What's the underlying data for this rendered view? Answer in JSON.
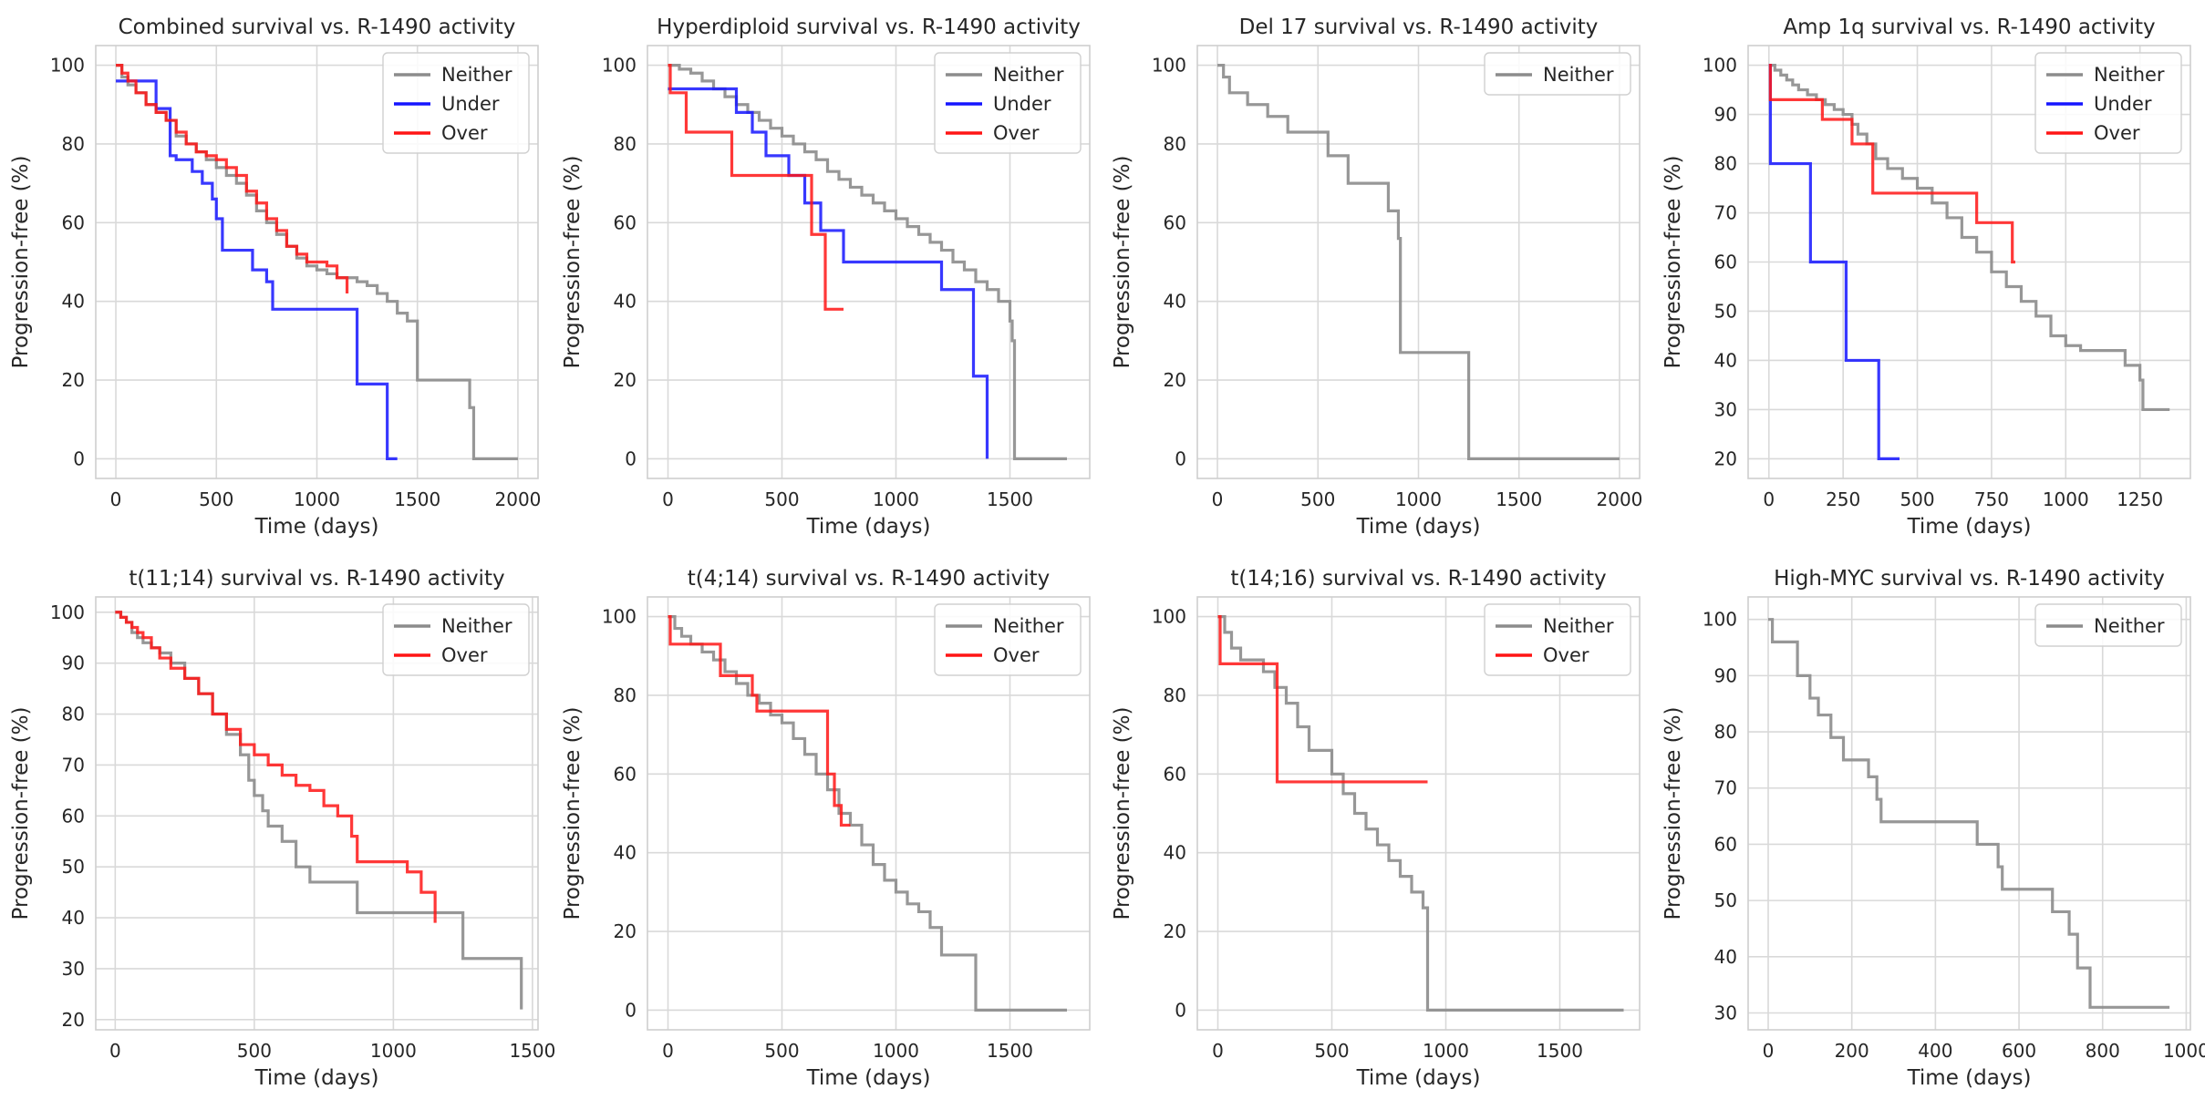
{
  "figure": {
    "ylabel": "Progression-free (%)",
    "xlabel": "Time (days)"
  },
  "colors": {
    "Neither": "#8c8c8c",
    "Under": "#1515ff",
    "Over": "#ff1515"
  },
  "chart_data": [
    {
      "type": "line",
      "step": true,
      "title": "Combined survival vs. R-1490 activity",
      "xlabel": "Time (days)",
      "ylabel": "Progression-free (%)",
      "xlim": [
        -100,
        2100
      ],
      "ylim": [
        -5,
        105
      ],
      "xticks": [
        0,
        500,
        1000,
        1500,
        2000
      ],
      "yticks": [
        0,
        20,
        40,
        60,
        80,
        100
      ],
      "grid": true,
      "legend": "top-right",
      "series": [
        {
          "name": "Neither",
          "x": [
            0,
            30,
            60,
            100,
            150,
            200,
            250,
            300,
            350,
            400,
            450,
            500,
            550,
            600,
            650,
            700,
            750,
            800,
            850,
            900,
            950,
            1000,
            1050,
            1100,
            1150,
            1200,
            1250,
            1300,
            1350,
            1400,
            1450,
            1500,
            1550,
            1600,
            1700,
            1760,
            1780,
            2000
          ],
          "y": [
            100,
            97,
            95,
            93,
            90,
            88,
            86,
            82,
            80,
            78,
            76,
            74,
            72,
            70,
            67,
            63,
            60,
            57,
            54,
            51,
            49,
            48,
            47,
            46,
            46,
            45,
            44,
            42,
            40,
            37,
            35,
            20,
            20,
            20,
            20,
            13,
            0,
            0
          ]
        },
        {
          "name": "Under",
          "x": [
            0,
            130,
            200,
            270,
            300,
            380,
            430,
            480,
            500,
            530,
            680,
            750,
            780,
            1200,
            1350,
            1400
          ],
          "y": [
            96,
            96,
            89,
            77,
            76,
            73,
            70,
            66,
            61,
            53,
            48,
            45,
            38,
            19,
            0,
            0
          ]
        },
        {
          "name": "Over",
          "x": [
            0,
            30,
            60,
            100,
            150,
            200,
            250,
            300,
            350,
            400,
            450,
            500,
            550,
            600,
            650,
            700,
            750,
            800,
            850,
            900,
            950,
            1000,
            1050,
            1100,
            1150
          ],
          "y": [
            100,
            98,
            96,
            93,
            90,
            88,
            86,
            83,
            80,
            78,
            77,
            76,
            74,
            72,
            68,
            65,
            61,
            58,
            54,
            52,
            50,
            50,
            49,
            46,
            42
          ]
        }
      ]
    },
    {
      "type": "line",
      "step": true,
      "title": "Hyperdiploid survival vs. R-1490 activity",
      "xlabel": "Time (days)",
      "ylabel": "Progression-free (%)",
      "xlim": [
        -90,
        1850
      ],
      "ylim": [
        -5,
        105
      ],
      "xticks": [
        0,
        500,
        1000,
        1500
      ],
      "yticks": [
        0,
        20,
        40,
        60,
        80,
        100
      ],
      "grid": true,
      "legend": "top-right",
      "series": [
        {
          "name": "Neither",
          "x": [
            0,
            50,
            100,
            150,
            200,
            250,
            300,
            350,
            400,
            450,
            500,
            550,
            600,
            650,
            700,
            750,
            800,
            850,
            900,
            950,
            1000,
            1050,
            1100,
            1150,
            1200,
            1250,
            1300,
            1350,
            1400,
            1450,
            1500,
            1510,
            1520,
            1750
          ],
          "y": [
            100,
            99,
            98,
            96,
            94,
            92,
            90,
            88,
            86,
            84,
            82,
            80,
            78,
            76,
            73,
            71,
            69,
            67,
            65,
            63,
            61,
            59,
            57,
            55,
            53,
            50,
            48,
            45,
            43,
            40,
            35,
            30,
            0,
            0
          ]
        },
        {
          "name": "Under",
          "x": [
            0,
            280,
            300,
            370,
            430,
            530,
            600,
            670,
            770,
            1200,
            1340,
            1400
          ],
          "y": [
            94,
            94,
            88,
            83,
            77,
            72,
            65,
            58,
            50,
            43,
            21,
            0
          ]
        },
        {
          "name": "Over",
          "x": [
            0,
            10,
            80,
            280,
            580,
            630,
            690,
            770
          ],
          "y": [
            100,
            93,
            83,
            72,
            72,
            57,
            38,
            38
          ]
        }
      ]
    },
    {
      "type": "line",
      "step": true,
      "title": "Del 17 survival vs. R-1490 activity",
      "xlabel": "Time (days)",
      "ylabel": "Progression-free (%)",
      "xlim": [
        -100,
        2100
      ],
      "ylim": [
        -5,
        105
      ],
      "xticks": [
        0,
        500,
        1000,
        1500,
        2000
      ],
      "yticks": [
        0,
        20,
        40,
        60,
        80,
        100
      ],
      "grid": true,
      "legend": "top-right",
      "series": [
        {
          "name": "Neither",
          "x": [
            0,
            30,
            60,
            150,
            250,
            350,
            550,
            650,
            850,
            900,
            910,
            1250,
            2000
          ],
          "y": [
            100,
            97,
            93,
            90,
            87,
            83,
            77,
            70,
            63,
            56,
            27,
            0,
            0
          ]
        }
      ]
    },
    {
      "type": "line",
      "step": true,
      "title": "Amp 1q survival vs. R-1490 activity",
      "xlabel": "Time (days)",
      "ylabel": "Progression-free (%)",
      "xlim": [
        -70,
        1420
      ],
      "ylim": [
        16,
        104
      ],
      "xticks": [
        0,
        250,
        500,
        750,
        1000,
        1250
      ],
      "yticks": [
        20,
        30,
        40,
        50,
        60,
        70,
        80,
        90,
        100
      ],
      "grid": true,
      "legend": "top-right",
      "series": [
        {
          "name": "Neither",
          "x": [
            0,
            20,
            40,
            60,
            80,
            100,
            130,
            160,
            190,
            220,
            250,
            280,
            300,
            330,
            360,
            400,
            450,
            500,
            550,
            600,
            650,
            700,
            750,
            800,
            850,
            900,
            950,
            1000,
            1050,
            1100,
            1150,
            1200,
            1250,
            1260,
            1350
          ],
          "y": [
            100,
            99,
            98,
            97,
            96,
            95,
            94,
            93,
            92,
            91,
            90,
            88,
            86,
            84,
            81,
            79,
            77,
            75,
            72,
            69,
            65,
            62,
            58,
            55,
            52,
            49,
            45,
            43,
            42,
            42,
            42,
            39,
            36,
            30,
            30
          ]
        },
        {
          "name": "Under",
          "x": [
            0,
            5,
            140,
            260,
            370,
            440
          ],
          "y": [
            100,
            80,
            60,
            40,
            20,
            20
          ]
        },
        {
          "name": "Over",
          "x": [
            0,
            5,
            180,
            250,
            280,
            350,
            700,
            820,
            830
          ],
          "y": [
            100,
            93,
            89,
            89,
            84,
            74,
            68,
            60,
            60
          ]
        }
      ]
    },
    {
      "type": "line",
      "step": true,
      "title": "t(11;14) survival vs. R-1490 activity",
      "xlabel": "Time (days)",
      "ylabel": "Progression-free (%)",
      "xlim": [
        -70,
        1520
      ],
      "ylim": [
        18,
        103
      ],
      "xticks": [
        0,
        500,
        1000,
        1500
      ],
      "yticks": [
        20,
        30,
        40,
        50,
        60,
        70,
        80,
        90,
        100
      ],
      "grid": true,
      "legend": "top-right",
      "series": [
        {
          "name": "Neither",
          "x": [
            0,
            20,
            40,
            60,
            80,
            100,
            130,
            160,
            200,
            250,
            300,
            350,
            400,
            450,
            480,
            500,
            530,
            550,
            600,
            650,
            700,
            720,
            850,
            870,
            1100,
            1200,
            1250,
            1460
          ],
          "y": [
            100,
            99,
            98,
            96,
            95,
            94,
            93,
            92,
            90,
            87,
            84,
            80,
            76,
            72,
            67,
            64,
            61,
            58,
            55,
            50,
            47,
            47,
            47,
            41,
            41,
            41,
            32,
            22
          ]
        },
        {
          "name": "Over",
          "x": [
            0,
            20,
            40,
            60,
            80,
            100,
            130,
            160,
            200,
            250,
            300,
            350,
            400,
            450,
            500,
            550,
            600,
            650,
            700,
            750,
            800,
            850,
            870,
            1000,
            1050,
            1100,
            1150
          ],
          "y": [
            100,
            99,
            98,
            97,
            96,
            95,
            93,
            91,
            89,
            87,
            84,
            80,
            77,
            74,
            72,
            70,
            68,
            66,
            65,
            62,
            60,
            56,
            51,
            51,
            49,
            45,
            39
          ]
        }
      ]
    },
    {
      "type": "line",
      "step": true,
      "title": "t(4;14) survival vs. R-1490 activity",
      "xlabel": "Time (days)",
      "ylabel": "Progression-free (%)",
      "xlim": [
        -90,
        1850
      ],
      "ylim": [
        -5,
        105
      ],
      "xticks": [
        0,
        500,
        1000,
        1500
      ],
      "yticks": [
        0,
        20,
        40,
        60,
        80,
        100
      ],
      "grid": true,
      "legend": "top-right",
      "series": [
        {
          "name": "Neither",
          "x": [
            0,
            30,
            60,
            100,
            150,
            200,
            250,
            300,
            350,
            400,
            450,
            500,
            550,
            600,
            650,
            700,
            750,
            800,
            850,
            900,
            950,
            1000,
            1050,
            1100,
            1150,
            1200,
            1350,
            1750
          ],
          "y": [
            100,
            97,
            95,
            93,
            91,
            89,
            86,
            83,
            80,
            78,
            75,
            73,
            69,
            65,
            60,
            56,
            50,
            47,
            42,
            37,
            33,
            30,
            27,
            25,
            21,
            14,
            0,
            0
          ]
        },
        {
          "name": "Over",
          "x": [
            0,
            10,
            230,
            370,
            390,
            700,
            730,
            760,
            800
          ],
          "y": [
            100,
            93,
            85,
            80,
            76,
            60,
            52,
            47,
            47
          ]
        }
      ]
    },
    {
      "type": "line",
      "step": true,
      "title": "t(14;16) survival vs. R-1490 activity",
      "xlabel": "Time (days)",
      "ylabel": "Progression-free (%)",
      "xlim": [
        -90,
        1850
      ],
      "ylim": [
        -5,
        105
      ],
      "xticks": [
        0,
        500,
        1000,
        1500
      ],
      "yticks": [
        0,
        20,
        40,
        60,
        80,
        100
      ],
      "grid": true,
      "legend": "top-right",
      "series": [
        {
          "name": "Neither",
          "x": [
            0,
            30,
            60,
            100,
            200,
            250,
            300,
            350,
            400,
            500,
            550,
            600,
            650,
            700,
            750,
            800,
            850,
            900,
            920,
            1780
          ],
          "y": [
            100,
            96,
            92,
            89,
            86,
            82,
            78,
            72,
            66,
            60,
            55,
            50,
            46,
            42,
            38,
            34,
            30,
            26,
            0,
            0
          ]
        },
        {
          "name": "Over",
          "x": [
            0,
            10,
            260,
            920
          ],
          "y": [
            100,
            88,
            58,
            58
          ]
        }
      ]
    },
    {
      "type": "line",
      "step": true,
      "title": "High-MYC survival vs. R-1490 activity",
      "xlabel": "Time (days)",
      "ylabel": "Progression-free (%)",
      "xlim": [
        -48,
        1010
      ],
      "ylim": [
        27,
        104
      ],
      "xticks": [
        0,
        200,
        400,
        600,
        800,
        1000
      ],
      "yticks": [
        30,
        40,
        50,
        60,
        70,
        80,
        90,
        100
      ],
      "grid": true,
      "legend": "top-right",
      "series": [
        {
          "name": "Neither",
          "x": [
            0,
            10,
            70,
            100,
            120,
            150,
            180,
            240,
            260,
            270,
            500,
            550,
            560,
            680,
            720,
            740,
            770,
            960
          ],
          "y": [
            100,
            96,
            90,
            86,
            83,
            79,
            75,
            72,
            68,
            64,
            60,
            56,
            52,
            48,
            44,
            38,
            31,
            31
          ]
        }
      ]
    }
  ]
}
